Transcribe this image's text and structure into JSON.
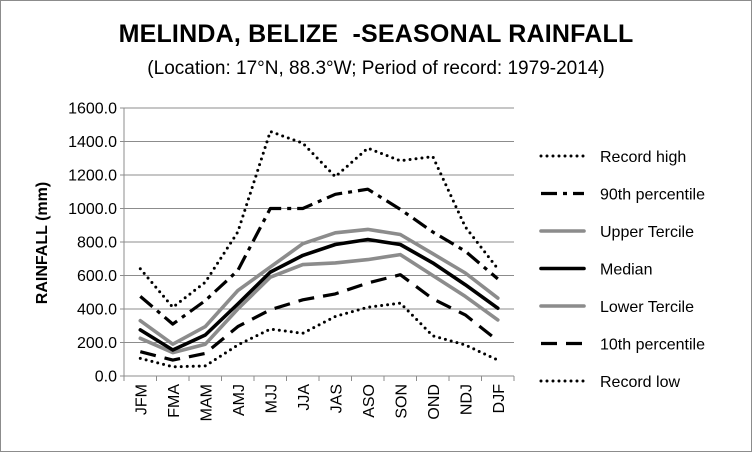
{
  "chart_data": {
    "type": "line",
    "title": "MELINDA, BELIZE  -SEASONAL RAINFALL",
    "subtitle": "(Location: 17°N, 88.3°W; Period of record: 1979-2014)",
    "xlabel": "",
    "ylabel": "RAINFALL (mm)",
    "ylim": [
      0,
      1600
    ],
    "yticks": [
      "0.0",
      "200.0",
      "400.0",
      "600.0",
      "800.0",
      "1000.0",
      "1200.0",
      "1400.0",
      "1600.0"
    ],
    "ytick_values": [
      0,
      200,
      400,
      600,
      800,
      1000,
      1200,
      1400,
      1600
    ],
    "categories": [
      "JFM",
      "FMA",
      "MAM",
      "AMJ",
      "MJJ",
      "JJA",
      "JAS",
      "ASO",
      "SON",
      "OND",
      "NDJ",
      "DJF"
    ],
    "legend_position": "right",
    "series": [
      {
        "name": "Record high",
        "style": "dotted",
        "color": "#000000",
        "values": [
          640,
          410,
          560,
          860,
          1460,
          1390,
          1190,
          1360,
          1285,
          1310,
          890,
          640
        ]
      },
      {
        "name": "90th percentile",
        "style": "dashdot",
        "color": "#000000",
        "values": [
          475,
          310,
          450,
          630,
          1000,
          1000,
          1085,
          1115,
          995,
          860,
          745,
          580
        ]
      },
      {
        "name": "Upper Tercile",
        "style": "solid",
        "color": "#8c8c8c",
        "values": [
          330,
          190,
          295,
          510,
          650,
          790,
          855,
          875,
          845,
          730,
          615,
          465
        ]
      },
      {
        "name": "Median",
        "style": "solid",
        "color": "#000000",
        "values": [
          275,
          155,
          245,
          430,
          620,
          720,
          785,
          815,
          785,
          675,
          545,
          405
        ]
      },
      {
        "name": "Lower Tercile",
        "style": "solid",
        "color": "#8c8c8c",
        "values": [
          225,
          140,
          190,
          400,
          590,
          665,
          675,
          695,
          725,
          600,
          475,
          335
        ]
      },
      {
        "name": "10th percentile",
        "style": "dashed",
        "color": "#000000",
        "values": [
          145,
          95,
          135,
          295,
          395,
          455,
          490,
          555,
          605,
          460,
          365,
          210
        ]
      },
      {
        "name": "Record low",
        "style": "dotted",
        "color": "#000000",
        "values": [
          105,
          55,
          60,
          185,
          280,
          255,
          355,
          410,
          435,
          240,
          185,
          95
        ]
      }
    ]
  }
}
